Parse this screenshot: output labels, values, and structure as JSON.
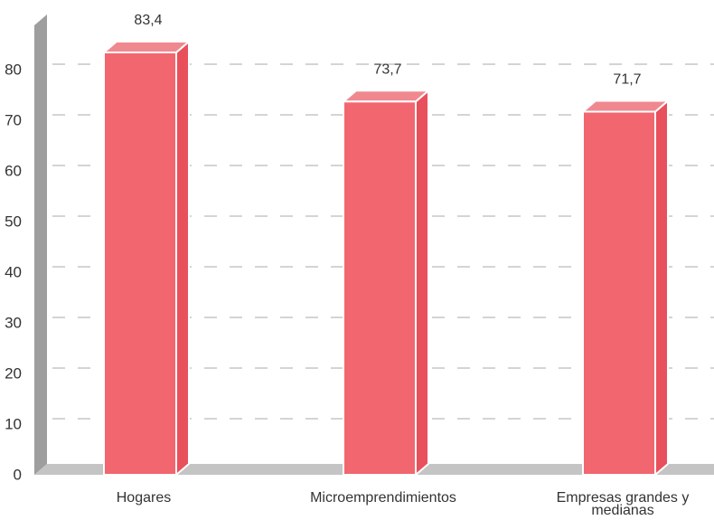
{
  "chart_data": {
    "type": "bar",
    "style": "3d",
    "title": "",
    "xlabel": "",
    "ylabel": "",
    "categories": [
      "Hogares",
      "Microemprendimientos",
      "Empresas grandes y medianas"
    ],
    "category_labels": [
      [
        "Hogares"
      ],
      [
        "Microemprendimientos"
      ],
      [
        "Empresas grandes y",
        "medianas"
      ]
    ],
    "values": [
      83.4,
      73.7,
      71.7
    ],
    "value_labels": [
      "83,4",
      "73,7",
      "71,7"
    ],
    "yticks": [
      0,
      10,
      20,
      30,
      40,
      50,
      60,
      70,
      80
    ],
    "ytick_labels": [
      "0",
      "10",
      "20",
      "30",
      "40",
      "50",
      "60",
      "70",
      "80"
    ],
    "ylim": [
      0,
      90
    ],
    "grid": true,
    "legend": "none",
    "colors": {
      "bar_front": "#f2666f",
      "bar_top": "#f08890",
      "bar_side": "#e8505b",
      "bar_edge": "#ffffff",
      "wall": "#9e9e9e",
      "floor": "#c4c4c4",
      "grid": "#aaaaaa"
    }
  }
}
